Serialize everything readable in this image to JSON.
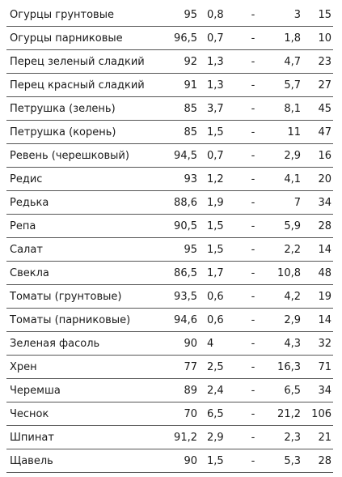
{
  "rows": [
    {
      "name": "Огурцы грунтовые",
      "water": "95",
      "protein": "0,8",
      "fat": "-",
      "carbs": "3",
      "kcal": "15"
    },
    {
      "name": "Огурцы парниковые",
      "water": "96,5",
      "protein": "0,7",
      "fat": "-",
      "carbs": "1,8",
      "kcal": "10"
    },
    {
      "name": "Перец зеленый сладкий",
      "water": "92",
      "protein": "1,3",
      "fat": "-",
      "carbs": "4,7",
      "kcal": "23"
    },
    {
      "name": "Перец красный сладкий",
      "water": "91",
      "protein": "1,3",
      "fat": "-",
      "carbs": "5,7",
      "kcal": "27"
    },
    {
      "name": "Петрушка (зелень)",
      "water": "85",
      "protein": "3,7",
      "fat": "-",
      "carbs": "8,1",
      "kcal": "45"
    },
    {
      "name": "Петрушка (корень)",
      "water": "85",
      "protein": "1,5",
      "fat": "-",
      "carbs": "11",
      "kcal": "47"
    },
    {
      "name": "Ревень (черешковый)",
      "water": "94,5",
      "protein": "0,7",
      "fat": "-",
      "carbs": "2,9",
      "kcal": "16"
    },
    {
      "name": "Редис",
      "water": "93",
      "protein": "1,2",
      "fat": "-",
      "carbs": "4,1",
      "kcal": "20"
    },
    {
      "name": "Редька",
      "water": "88,6",
      "protein": "1,9",
      "fat": "-",
      "carbs": "7",
      "kcal": "34"
    },
    {
      "name": "Репа",
      "water": "90,5",
      "protein": "1,5",
      "fat": "-",
      "carbs": "5,9",
      "kcal": "28"
    },
    {
      "name": "Салат",
      "water": "95",
      "protein": "1,5",
      "fat": "-",
      "carbs": "2,2",
      "kcal": "14"
    },
    {
      "name": "Свекла",
      "water": "86,5",
      "protein": "1,7",
      "fat": "-",
      "carbs": "10,8",
      "kcal": "48"
    },
    {
      "name": "Томаты (грунтовые)",
      "water": "93,5",
      "protein": "0,6",
      "fat": "-",
      "carbs": "4,2",
      "kcal": "19"
    },
    {
      "name": "Томаты (парниковые)",
      "water": "94,6",
      "protein": "0,6",
      "fat": "-",
      "carbs": "2,9",
      "kcal": "14"
    },
    {
      "name": "Зеленая фасоль",
      "water": "90",
      "protein": "4",
      "fat": "-",
      "carbs": "4,3",
      "kcal": "32"
    },
    {
      "name": "Хрен",
      "water": "77",
      "protein": "2,5",
      "fat": "-",
      "carbs": "16,3",
      "kcal": "71"
    },
    {
      "name": "Черемша",
      "water": "89",
      "protein": "2,4",
      "fat": "-",
      "carbs": "6,5",
      "kcal": "34"
    },
    {
      "name": "Чеснок",
      "water": "70",
      "protein": "6,5",
      "fat": "-",
      "carbs": "21,2",
      "kcal": "106"
    },
    {
      "name": "Шпинат",
      "water": "91,2",
      "protein": "2,9",
      "fat": "-",
      "carbs": "2,3",
      "kcal": "21"
    },
    {
      "name": "Щавель",
      "water": "90",
      "protein": "1,5",
      "fat": "-",
      "carbs": "5,3",
      "kcal": "28"
    }
  ]
}
